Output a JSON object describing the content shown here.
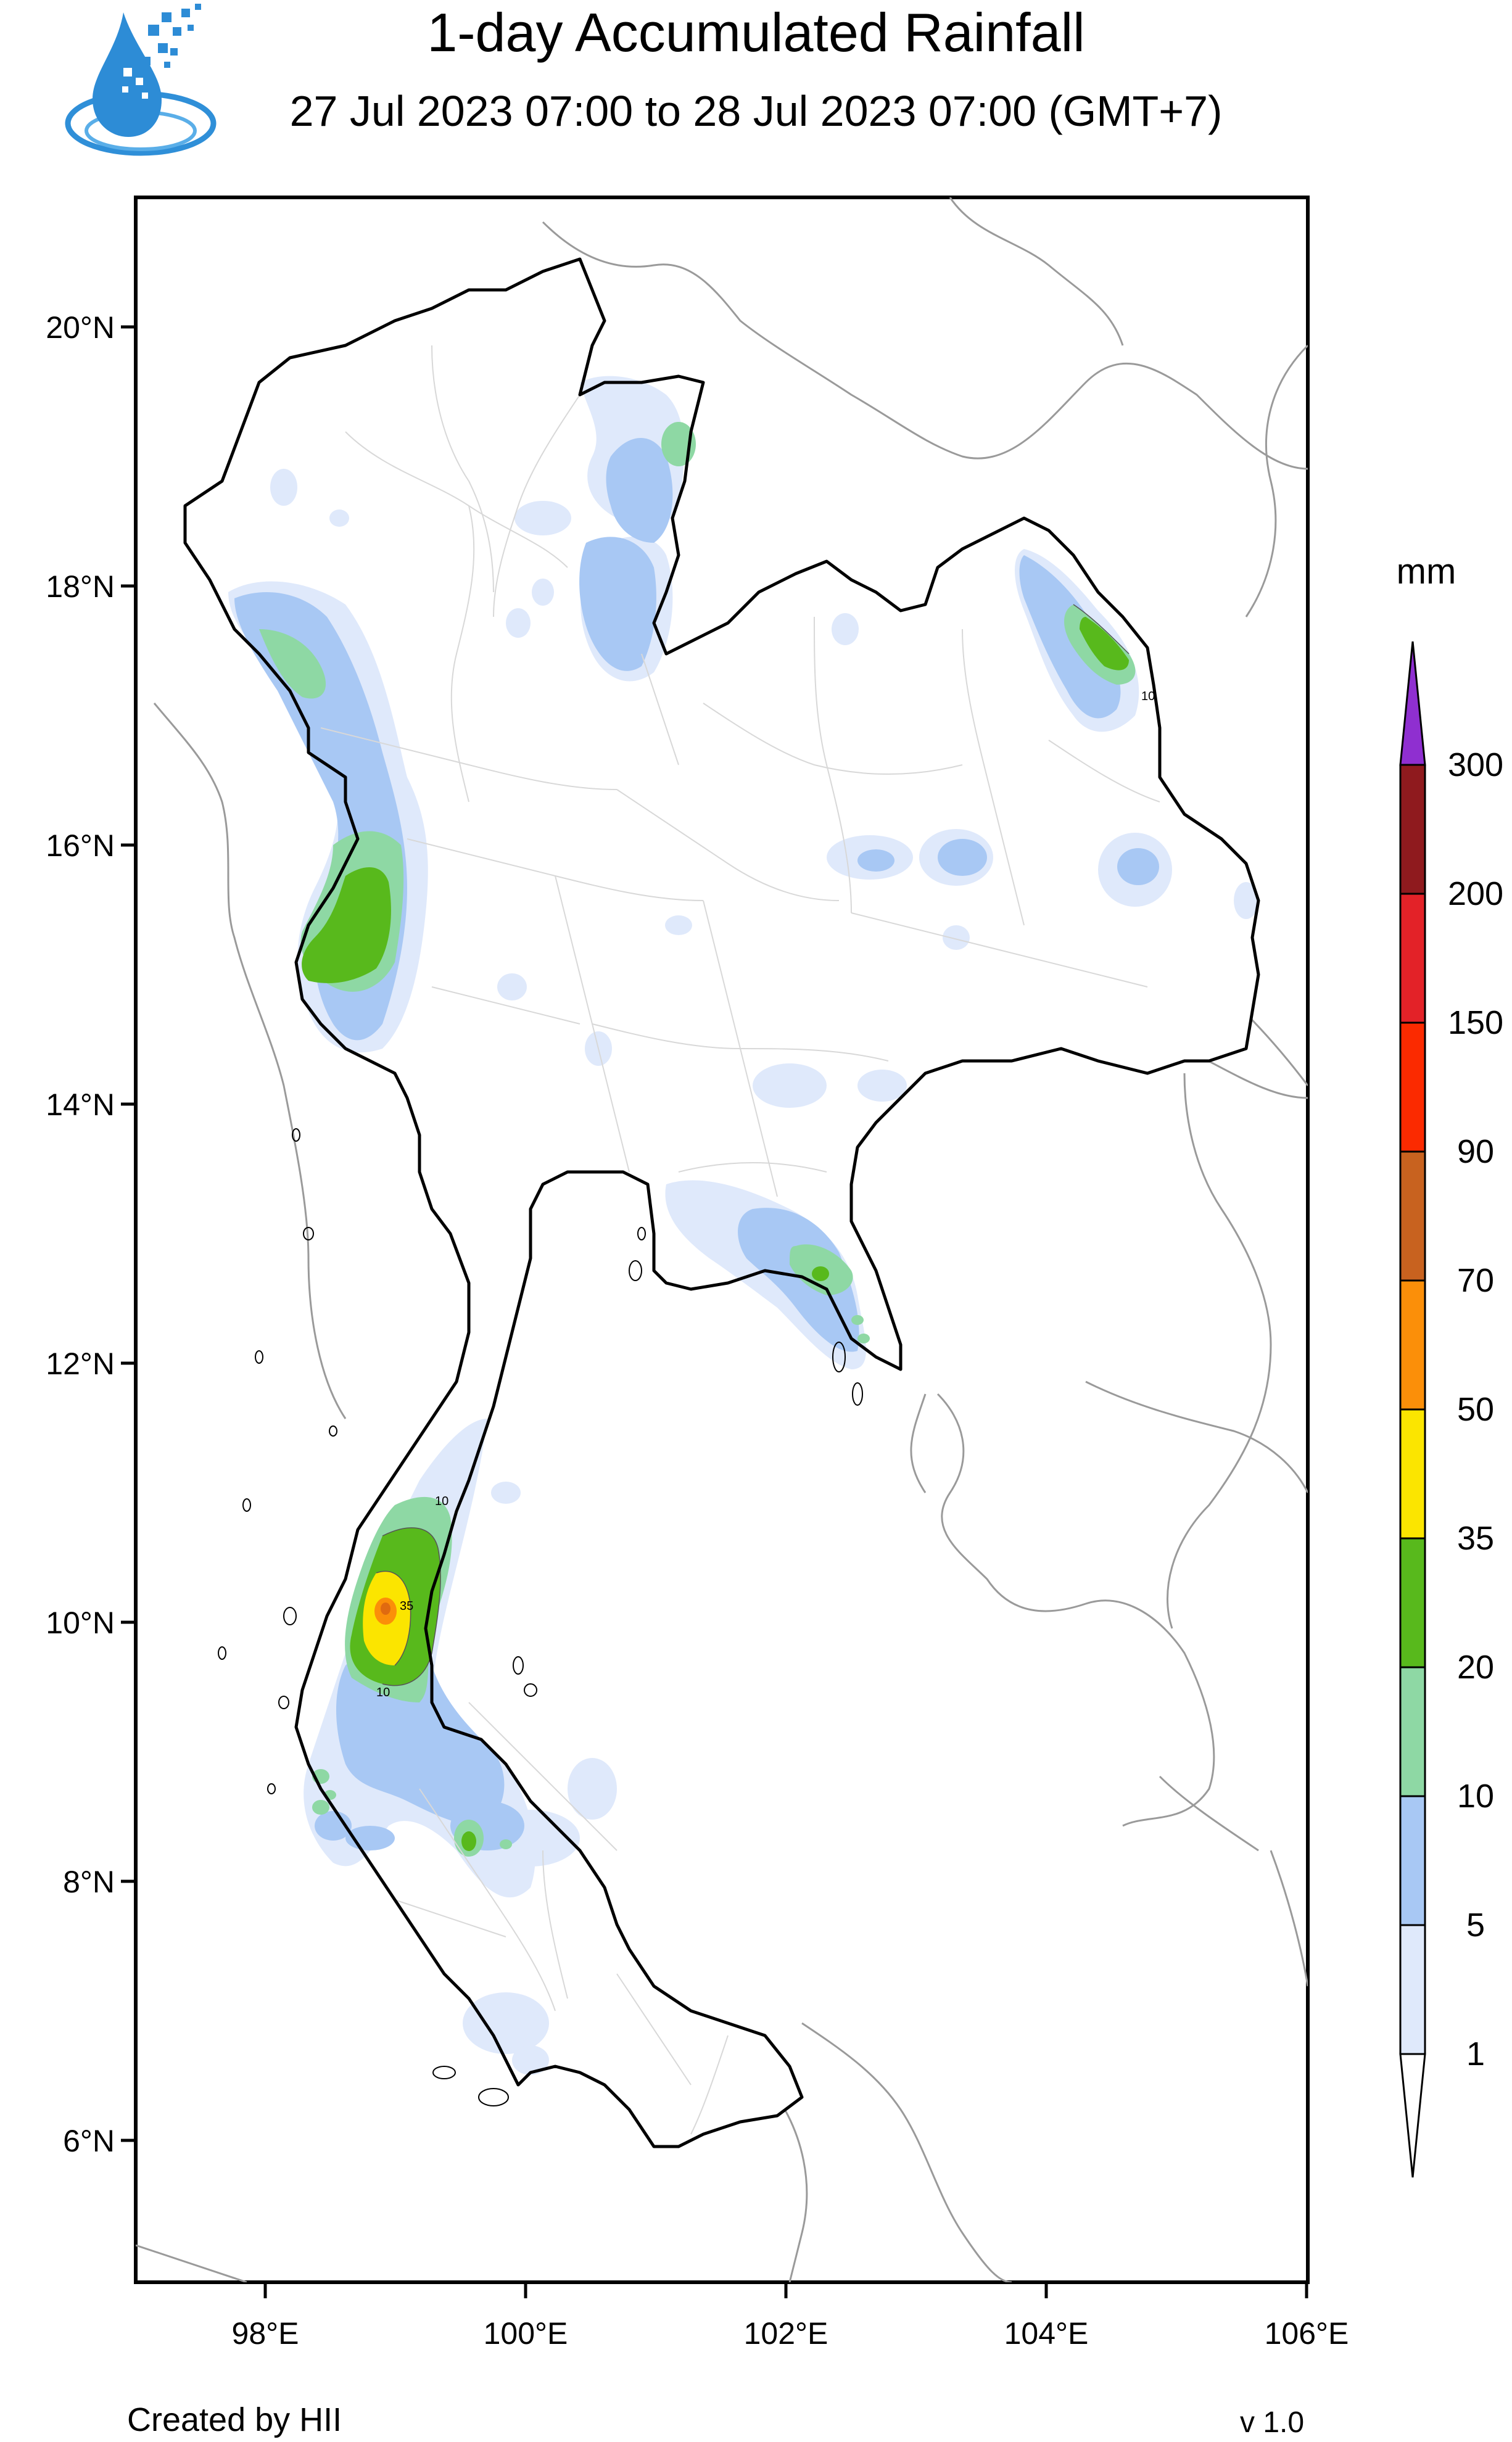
{
  "header": {
    "title": "1-day Accumulated Rainfall",
    "subtitle": "27 Jul 2023 07:00 to 28 Jul 2023 07:00 (GMT+7)"
  },
  "map": {
    "lat_labels": [
      "20°N",
      "18°N",
      "16°N",
      "14°N",
      "12°N",
      "10°N",
      "8°N",
      "6°N"
    ],
    "lon_labels": [
      "98°E",
      "100°E",
      "102°E",
      "104°E",
      "106°E"
    ],
    "colors": {
      "border": "#000000",
      "province_lines": "#d8d8d8",
      "neighbor_lines": "#9a9a9a"
    }
  },
  "legend": {
    "unit": "mm",
    "levels": [
      {
        "label": "1",
        "color": "#dfe9fb"
      },
      {
        "label": "5",
        "color": "#a8c8f4"
      },
      {
        "label": "10",
        "color": "#8ed8a4"
      },
      {
        "label": "20",
        "color": "#58b91c"
      },
      {
        "label": "35",
        "color": "#fbe500"
      },
      {
        "label": "50",
        "color": "#fb8f09"
      },
      {
        "label": "70",
        "color": "#c8621f"
      },
      {
        "label": "90",
        "color": "#fb2a00"
      },
      {
        "label": "150",
        "color": "#e32228"
      },
      {
        "label": "200",
        "color": "#8f1a1e"
      },
      {
        "label": "300",
        "color": "#8f2fd0"
      }
    ]
  },
  "footer": {
    "credit": "Created by HII",
    "version": "v 1.0"
  },
  "contour_labels": [
    "10",
    "10",
    "10",
    "35"
  ]
}
